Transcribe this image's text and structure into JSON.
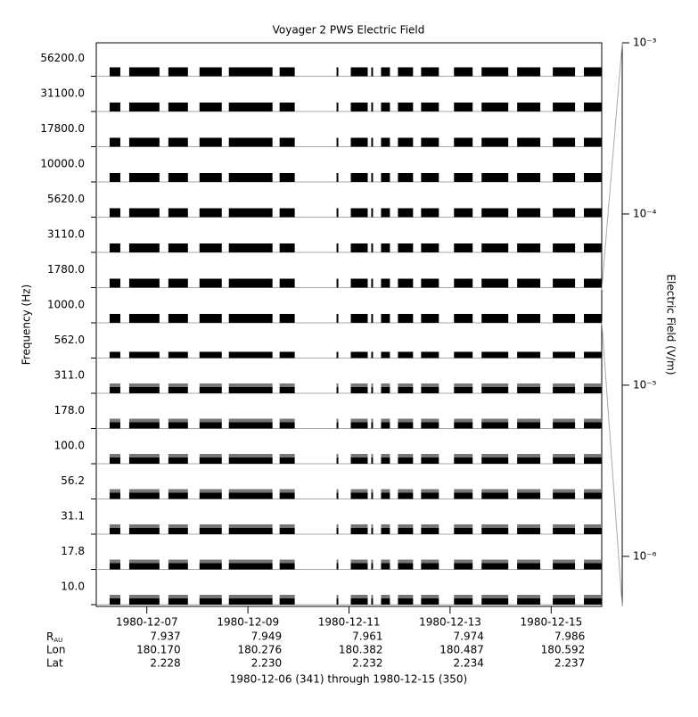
{
  "chart_data": {
    "type": "stack",
    "title": "Voyager 2 PWS Electric Field",
    "y_label": "Frequency (Hz)",
    "x_label": "1980-12-06 (341) through 1980-12-15 (350)",
    "colorbar_label": "Electric Field (V/m)",
    "categories": [
      "56200.0",
      "31100.0",
      "17800.0",
      "10000.0",
      "5620.0",
      "3110.0",
      "1780.0",
      "1000.0",
      "562.0",
      "311.0",
      "178.0",
      "100.0",
      "56.2",
      "31.1",
      "17.8",
      "10.0"
    ],
    "xlim": [
      "1980-12-06",
      "1980-12-16"
    ],
    "xticks": [
      "1980-12-07",
      "1980-12-09",
      "1980-12-11",
      "1980-12-13",
      "1980-12-15"
    ],
    "intervals": [
      [
        "1980-12-06T06:20",
        "1980-12-06T11:25"
      ],
      [
        "1980-12-06T15:38",
        "1980-12-07T06:00"
      ],
      [
        "1980-12-07T10:14",
        "1980-12-07T19:31"
      ],
      [
        "1980-12-08T01:01",
        "1980-12-08T11:35"
      ],
      [
        "1980-12-08T14:57",
        "1980-12-09T11:40"
      ],
      [
        "1980-12-09T15:03",
        "1980-12-09T22:14"
      ],
      [
        "1980-12-10T18:06",
        "1980-12-10T18:56"
      ],
      [
        "1980-12-11T00:51",
        "1980-12-11T08:53"
      ],
      [
        "1980-12-11T10:34",
        "1980-12-11T11:24"
      ],
      [
        "1980-12-11T15:13",
        "1980-12-11T19:26"
      ],
      [
        "1980-12-11T23:14",
        "1980-12-12T06:25"
      ],
      [
        "1980-12-12T10:14",
        "1980-12-12T18:40"
      ],
      [
        "1980-12-13T01:51",
        "1980-12-13T10:43"
      ],
      [
        "1980-12-13T14:57",
        "1980-12-14T03:38"
      ],
      [
        "1980-12-14T07:51",
        "1980-12-14T18:50"
      ],
      [
        "1980-12-15T00:46",
        "1980-12-15T11:20"
      ],
      [
        "1980-12-15T15:33",
        "1980-12-16T00:00"
      ]
    ],
    "ephemeris": [
      {
        "label": "R",
        "subscript": "AU",
        "values": [
          "7.937",
          "7.949",
          "7.961",
          "7.974",
          "7.986"
        ]
      },
      {
        "label": "Lon",
        "values": [
          "180.170",
          "180.276",
          "180.382",
          "180.487",
          "180.592"
        ]
      },
      {
        "label": "Lat",
        "values": [
          "2.228",
          "2.230",
          "2.232",
          "2.234",
          "2.237"
        ]
      }
    ],
    "colorbar_scale": "log",
    "colorbar_lim": [
      5.1e-07,
      0.001
    ],
    "colorbar_ticks": [
      {
        "value": 0.001,
        "label": "10⁻³"
      },
      {
        "value": 0.0001,
        "label": "10⁻⁴"
      },
      {
        "value": 1e-05,
        "label": "10⁻⁵"
      },
      {
        "value": 1e-06,
        "label": "10⁻⁶"
      }
    ],
    "color": "#000000"
  }
}
